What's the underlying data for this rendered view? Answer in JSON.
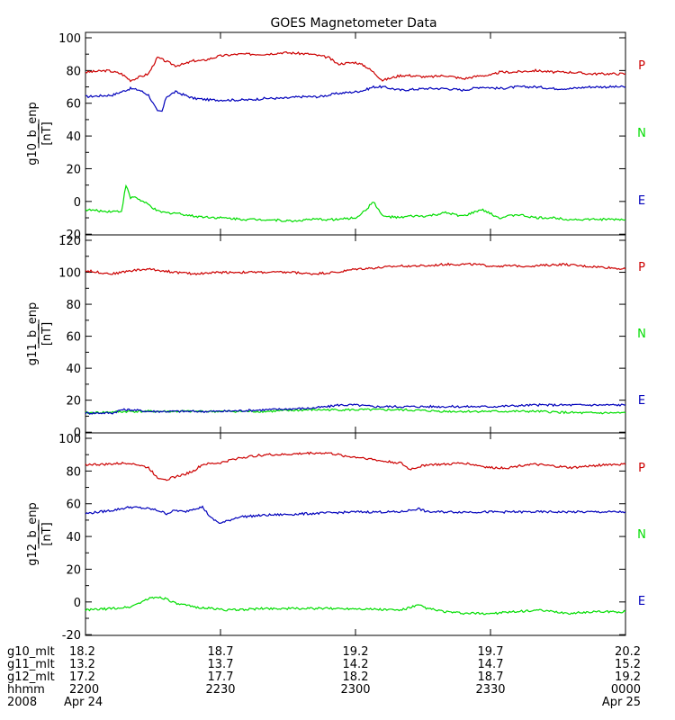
{
  "chart_data": {
    "type": "line",
    "title": "GOES Magnetometer Data",
    "legend": [
      {
        "label": "P",
        "color": "#cc0000"
      },
      {
        "label": "N",
        "color": "#00dd00"
      },
      {
        "label": "E",
        "color": "#0000bb"
      }
    ],
    "panels": [
      {
        "ylabel_top": "g10_b_enp",
        "ylabel_unit": "[nT]",
        "ylim": [
          -20,
          100
        ],
        "yticks": [
          "-20",
          "0",
          "20",
          "40",
          "60",
          "80",
          "100"
        ],
        "yticks_values": [
          -20,
          0,
          20,
          40,
          60,
          80,
          100
        ],
        "series": [
          {
            "label": "P",
            "color": "#cc0000",
            "x": [
              0,
              5,
              8,
              10,
              14,
              16,
              20,
              22,
              24,
              26,
              30,
              34,
              40,
              44,
              50,
              54,
              56,
              60,
              62,
              64,
              66,
              70,
              72,
              76,
              80,
              84,
              88,
              90,
              92,
              95,
              100,
              104,
              108,
              112,
              116,
              120
            ],
            "y": [
              79,
              80,
              78,
              74,
              78,
              88,
              83,
              84,
              86,
              86,
              89,
              90,
              90,
              91,
              90,
              88,
              84,
              85,
              83,
              79,
              74,
              77,
              77,
              76,
              77,
              75,
              77,
              77,
              79,
              79,
              80,
              79,
              79,
              78,
              78,
              78
            ]
          },
          {
            "label": "N",
            "color": "#00dd00",
            "x": [
              0,
              4,
              8,
              9,
              10,
              11,
              12,
              14,
              16,
              18,
              20,
              24,
              30,
              36,
              40,
              46,
              50,
              52,
              56,
              60,
              62,
              64,
              66,
              70,
              72,
              76,
              80,
              84,
              88,
              92,
              96,
              100,
              104,
              108,
              112,
              116,
              120
            ],
            "y": [
              -5,
              -6,
              -6,
              10,
              2,
              3,
              1,
              -2,
              -6,
              -7,
              -7,
              -9,
              -10,
              -11,
              -11,
              -12,
              -11,
              -11,
              -11,
              -10,
              -6,
              0,
              -9,
              -10,
              -9,
              -9,
              -7,
              -9,
              -5,
              -10,
              -8,
              -10,
              -10,
              -11,
              -11,
              -11,
              -11
            ]
          },
          {
            "label": "E",
            "color": "#0000bb",
            "x": [
              0,
              6,
              8,
              10,
              12,
              14,
              15,
              16,
              17,
              18,
              20,
              22,
              24,
              28,
              32,
              36,
              40,
              44,
              48,
              52,
              56,
              60,
              62,
              64,
              66,
              70,
              76,
              80,
              84,
              88,
              92,
              96,
              100,
              104,
              108,
              112,
              116,
              120
            ],
            "y": [
              64,
              65,
              67,
              69,
              68,
              65,
              60,
              55,
              55,
              64,
              67,
              65,
              63,
              62,
              62,
              62,
              63,
              63,
              64,
              64,
              66,
              67,
              68,
              70,
              70,
              68,
              69,
              69,
              68,
              70,
              69,
              70,
              70,
              69,
              69,
              70,
              70,
              70
            ]
          }
        ]
      },
      {
        "ylabel_top": "g11_b_enp",
        "ylabel_unit": "[nT]",
        "ylim": [
          0,
          120
        ],
        "yticks": [
          "0",
          "20",
          "40",
          "60",
          "80",
          "100",
          "120"
        ],
        "yticks_values": [
          0,
          20,
          40,
          60,
          80,
          100,
          120
        ],
        "series": [
          {
            "label": "P",
            "color": "#cc0000",
            "x": [
              0,
              6,
              10,
              14,
              20,
              24,
              30,
              36,
              40,
              46,
              50,
              56,
              60,
              66,
              70,
              76,
              80,
              86,
              90,
              96,
              100,
              106,
              110,
              116,
              120
            ],
            "y": [
              101,
              99,
              101,
              102,
              100,
              99,
              100,
              100,
              100,
              100,
              99,
              100,
              102,
              103,
              104,
              104,
              105,
              105,
              104,
              104,
              104,
              105,
              104,
              103,
              102
            ]
          },
          {
            "label": "N",
            "color": "#00dd00",
            "x": [
              0,
              10,
              20,
              30,
              40,
              50,
              56,
              60,
              70,
              80,
              90,
              100,
              110,
              120
            ],
            "y": [
              12,
              13,
              13,
              13,
              13,
              14,
              14,
              14,
              14,
              13,
              13,
              13,
              12,
              12
            ]
          },
          {
            "label": "E",
            "color": "#0000bb",
            "x": [
              0,
              6,
              8,
              10,
              14,
              20,
              30,
              40,
              50,
              54,
              56,
              60,
              64,
              70,
              80,
              90,
              100,
              110,
              120
            ],
            "y": [
              12,
              12,
              14,
              14,
              13,
              13,
              13,
              14,
              15,
              16,
              17,
              17,
              16,
              16,
              16,
              16,
              17,
              17,
              17
            ]
          }
        ]
      },
      {
        "ylabel_top": "g12_b_enp",
        "ylabel_unit": "[nT]",
        "ylim": [
          -20,
          100
        ],
        "yticks": [
          "-20",
          "0",
          "20",
          "40",
          "60",
          "80",
          "100"
        ],
        "yticks_values": [
          -20,
          0,
          20,
          40,
          60,
          80,
          100
        ],
        "series": [
          {
            "label": "P",
            "color": "#cc0000",
            "x": [
              0,
              4,
              10,
              14,
              16,
              18,
              22,
              24,
              26,
              30,
              34,
              40,
              44,
              50,
              54,
              58,
              62,
              66,
              70,
              72,
              76,
              80,
              84,
              88,
              90,
              94,
              98,
              100,
              104,
              108,
              112,
              116,
              120
            ],
            "y": [
              84,
              84,
              85,
              82,
              76,
              75,
              78,
              80,
              84,
              85,
              88,
              90,
              90,
              91,
              91,
              89,
              88,
              86,
              85,
              81,
              84,
              84,
              85,
              83,
              82,
              82,
              84,
              84,
              83,
              82,
              83,
              84,
              84
            ]
          },
          {
            "label": "N",
            "color": "#00dd00",
            "x": [
              0,
              6,
              10,
              14,
              16,
              18,
              20,
              24,
              28,
              32,
              40,
              50,
              60,
              70,
              74,
              76,
              80,
              84,
              90,
              96,
              100,
              104,
              108,
              112,
              116,
              120
            ],
            "y": [
              -5,
              -4,
              -3,
              2,
              3,
              2,
              -1,
              -3,
              -4,
              -5,
              -4,
              -4,
              -4,
              -5,
              -2,
              -4,
              -6,
              -7,
              -7,
              -6,
              -5,
              -6,
              -7,
              -6,
              -6,
              -6
            ]
          },
          {
            "label": "E",
            "color": "#0000bb",
            "x": [
              0,
              6,
              10,
              14,
              16,
              18,
              20,
              22,
              24,
              26,
              28,
              30,
              34,
              40,
              50,
              60,
              70,
              74,
              76,
              80,
              90,
              100,
              110,
              120
            ],
            "y": [
              54,
              56,
              58,
              57,
              56,
              54,
              56,
              55,
              57,
              58,
              51,
              48,
              52,
              53,
              54,
              55,
              55,
              57,
              55,
              55,
              55,
              55,
              55,
              55
            ]
          }
        ]
      }
    ],
    "x_axis": {
      "xlim": [
        0,
        120
      ],
      "tick_positions": [
        0,
        30,
        60,
        90,
        120
      ],
      "row_labels": [
        "g10_mlt",
        "g11_mlt",
        "g12_mlt",
        "hhmm",
        "2008"
      ],
      "rows": [
        [
          "18.2",
          "18.7",
          "19.2",
          "19.7",
          "20.2"
        ],
        [
          "13.2",
          "13.7",
          "14.2",
          "14.7",
          "15.2"
        ],
        [
          "17.2",
          "17.7",
          "18.2",
          "18.7",
          "19.2"
        ],
        [
          "2200",
          "2230",
          "2300",
          "2330",
          "0000"
        ]
      ],
      "date_start": "Apr 24",
      "date_end": "Apr 25"
    }
  }
}
